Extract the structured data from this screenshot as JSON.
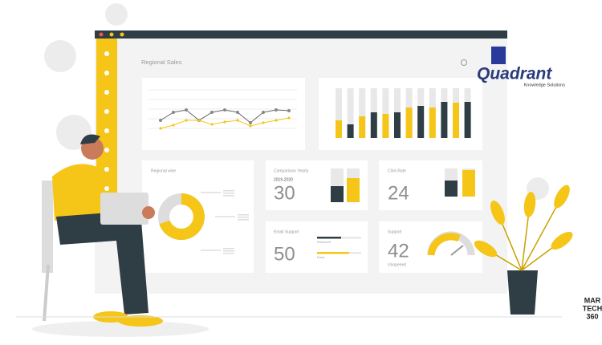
{
  "dashboard": {
    "title": "Regional Sales",
    "cards": [
      {
        "title": "Regional wise"
      },
      {
        "title": "Comparision Yearly",
        "subtitle": "2019-2020",
        "number": "30"
      },
      {
        "title": "Click Rate",
        "number": "24"
      },
      {
        "title": "Email Support",
        "number": "50",
        "legend": [
          "Delivered",
          "Done"
        ]
      },
      {
        "title": "Support",
        "number": "42",
        "caption": "Unopened"
      }
    ]
  },
  "logos": {
    "quadrant": {
      "name": "Quadrant",
      "tagline": "Knowledge Solutions"
    },
    "martech": {
      "line1": "MAR",
      "line2": "TECH",
      "line3": "360"
    }
  }
}
